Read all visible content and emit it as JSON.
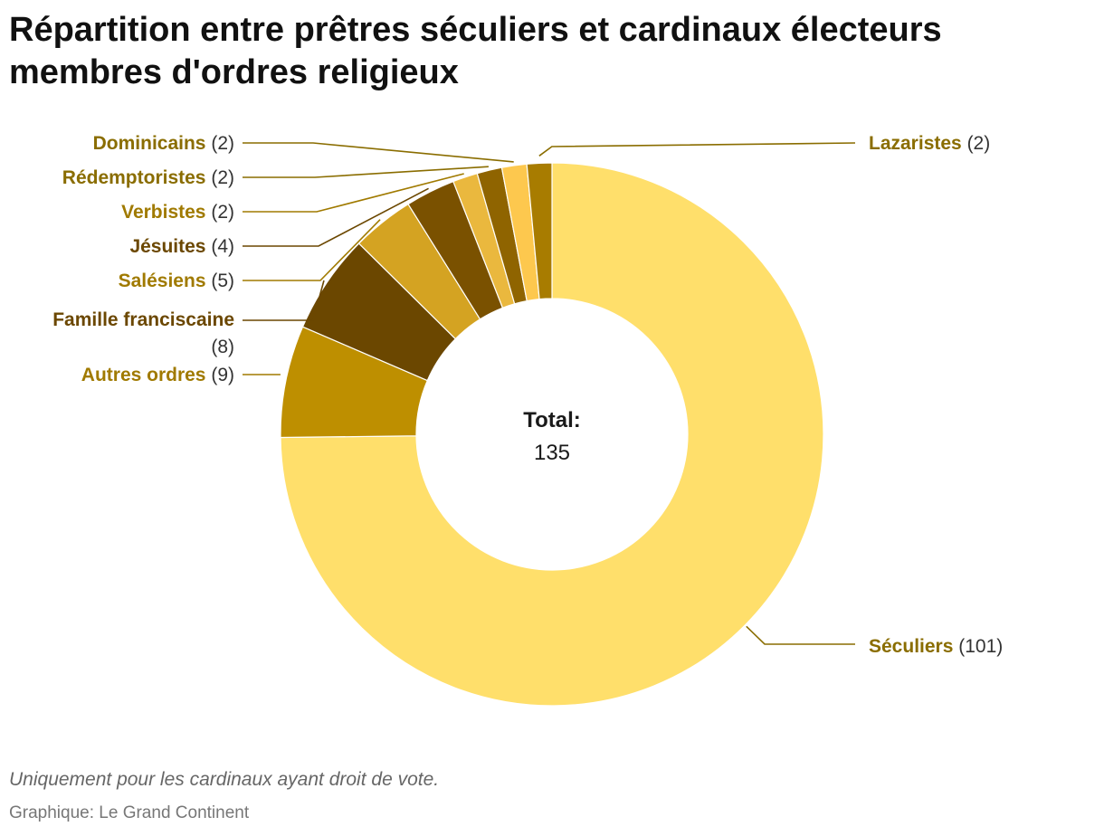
{
  "chart_data": {
    "type": "pie",
    "variant": "donut",
    "title": "Répartition entre prêtres séculiers et cardinaux électeurs membres d'ordres religieux",
    "center_label": "Total:",
    "center_value": "135",
    "categories": [
      "Séculiers",
      "Autres ordres",
      "Famille franciscaine",
      "Salésiens",
      "Jésuites",
      "Verbistes",
      "Rédemptoristes",
      "Dominicains",
      "Lazaristes"
    ],
    "values": [
      101,
      9,
      8,
      5,
      4,
      2,
      2,
      2,
      2
    ],
    "count_labels": [
      "(101)",
      "(9)",
      "(8)",
      "(5)",
      "(4)",
      "(2)",
      "(2)",
      "(2)",
      "(2)"
    ],
    "colors": [
      "#ffdf6b",
      "#be8f00",
      "#6b4700",
      "#d4a322",
      "#7a5100",
      "#eab83e",
      "#8f6400",
      "#fdc84e",
      "#a87c00"
    ],
    "label_colors": [
      "#8a6d00",
      "#a07a00",
      "#6b4700",
      "#a07a00",
      "#6b4700",
      "#a07a00",
      "#8a6d00",
      "#8a6d00",
      "#8a6d00"
    ]
  },
  "note": "Uniquement pour les cardinaux ayant droit de vote.",
  "source": "Graphique: Le Grand Continent"
}
